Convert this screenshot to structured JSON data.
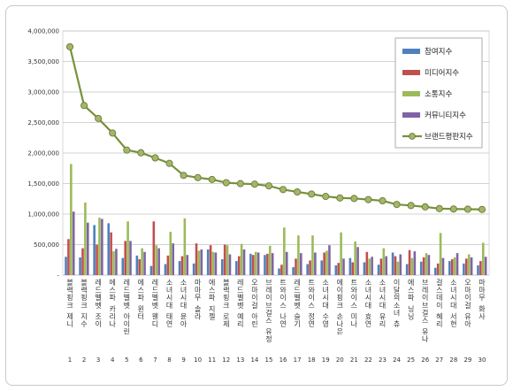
{
  "chart_data": {
    "type": "bar",
    "title": "",
    "xlabel": "",
    "ylabel": "",
    "ylim": [
      0,
      4000000
    ],
    "y_ticks": [
      "-",
      "500,000",
      "1,000,000",
      "1,500,000",
      "2,000,000",
      "2,500,000",
      "3,000,000",
      "3,500,000",
      "4,000,000"
    ],
    "grid": true,
    "legend_position": "top-right",
    "ranks": [
      "1",
      "2",
      "3",
      "4",
      "5",
      "6",
      "7",
      "8",
      "9",
      "10",
      "11",
      "12",
      "13",
      "14",
      "15",
      "16",
      "17",
      "18",
      "19",
      "20",
      "21",
      "22",
      "23",
      "24",
      "25",
      "26",
      "27",
      "28",
      "29",
      "30"
    ],
    "categories": [
      "블랙핑크 제니",
      "블랙핑크 지수",
      "레드벨벳 조이",
      "에스파 카리나",
      "레드벨벳 아이린",
      "에스파 윈터",
      "레드벨벳 웬디",
      "소녀시대 태연",
      "소녀시대 윤아",
      "마마무 솔라",
      "에스파 지젤",
      "블랙핑크 로제",
      "레드벨벳 예리",
      "오마이걸 아린",
      "브레이브걸스 유정",
      "트와이스 나연",
      "레드벨벳 슬기",
      "트와이스 정연",
      "소녀시대 수영",
      "에이핑크 손나은",
      "트와이스 미나",
      "소녀시대 효연",
      "소녀시대 유리",
      "이달의소녀 츄",
      "에스파 닝닝",
      "브레이브걸스 유나",
      "걸스데이 혜리",
      "소녀시대 서현",
      "오마이걸 유아",
      "마마무 화사"
    ],
    "series": [
      {
        "name": "참여지수",
        "color": "#4f81bd",
        "values": [
          300000,
          290000,
          820000,
          850000,
          280000,
          320000,
          150000,
          180000,
          230000,
          190000,
          420000,
          260000,
          230000,
          350000,
          330000,
          110000,
          130000,
          180000,
          240000,
          160000,
          280000,
          210000,
          170000,
          370000,
          180000,
          220000,
          120000,
          230000,
          190000,
          160000
        ]
      },
      {
        "name": "미디어지수",
        "color": "#c0504d",
        "values": [
          590000,
          440000,
          500000,
          700000,
          560000,
          260000,
          880000,
          320000,
          310000,
          520000,
          490000,
          500000,
          310000,
          330000,
          350000,
          170000,
          270000,
          240000,
          370000,
          200000,
          210000,
          380000,
          270000,
          310000,
          410000,
          290000,
          190000,
          260000,
          270000,
          230000
        ]
      },
      {
        "name": "소통지수",
        "color": "#9bbb59",
        "values": [
          1820000,
          1190000,
          940000,
          390000,
          880000,
          440000,
          490000,
          710000,
          930000,
          400000,
          380000,
          490000,
          510000,
          380000,
          480000,
          780000,
          650000,
          650000,
          400000,
          700000,
          550000,
          270000,
          440000,
          220000,
          280000,
          360000,
          690000,
          290000,
          340000,
          530000
        ]
      },
      {
        "name": "커뮤니티지수",
        "color": "#8064a2",
        "values": [
          1040000,
          860000,
          920000,
          430000,
          560000,
          380000,
          440000,
          520000,
          330000,
          420000,
          370000,
          340000,
          420000,
          370000,
          360000,
          380000,
          360000,
          370000,
          490000,
          270000,
          460000,
          300000,
          310000,
          340000,
          390000,
          330000,
          280000,
          360000,
          290000,
          300000
        ]
      },
      {
        "name": "브랜드평판지수",
        "type": "line",
        "color": "#76923c",
        "values": [
          3741000,
          2779000,
          2566000,
          2327000,
          2049000,
          2004000,
          1921000,
          1831000,
          1634000,
          1597000,
          1567000,
          1514000,
          1499000,
          1490000,
          1462000,
          1402000,
          1363000,
          1328000,
          1289000,
          1264000,
          1256000,
          1237000,
          1218000,
          1157000,
          1140000,
          1118000,
          1090000,
          1083000,
          1080000,
          1076000
        ]
      }
    ]
  }
}
